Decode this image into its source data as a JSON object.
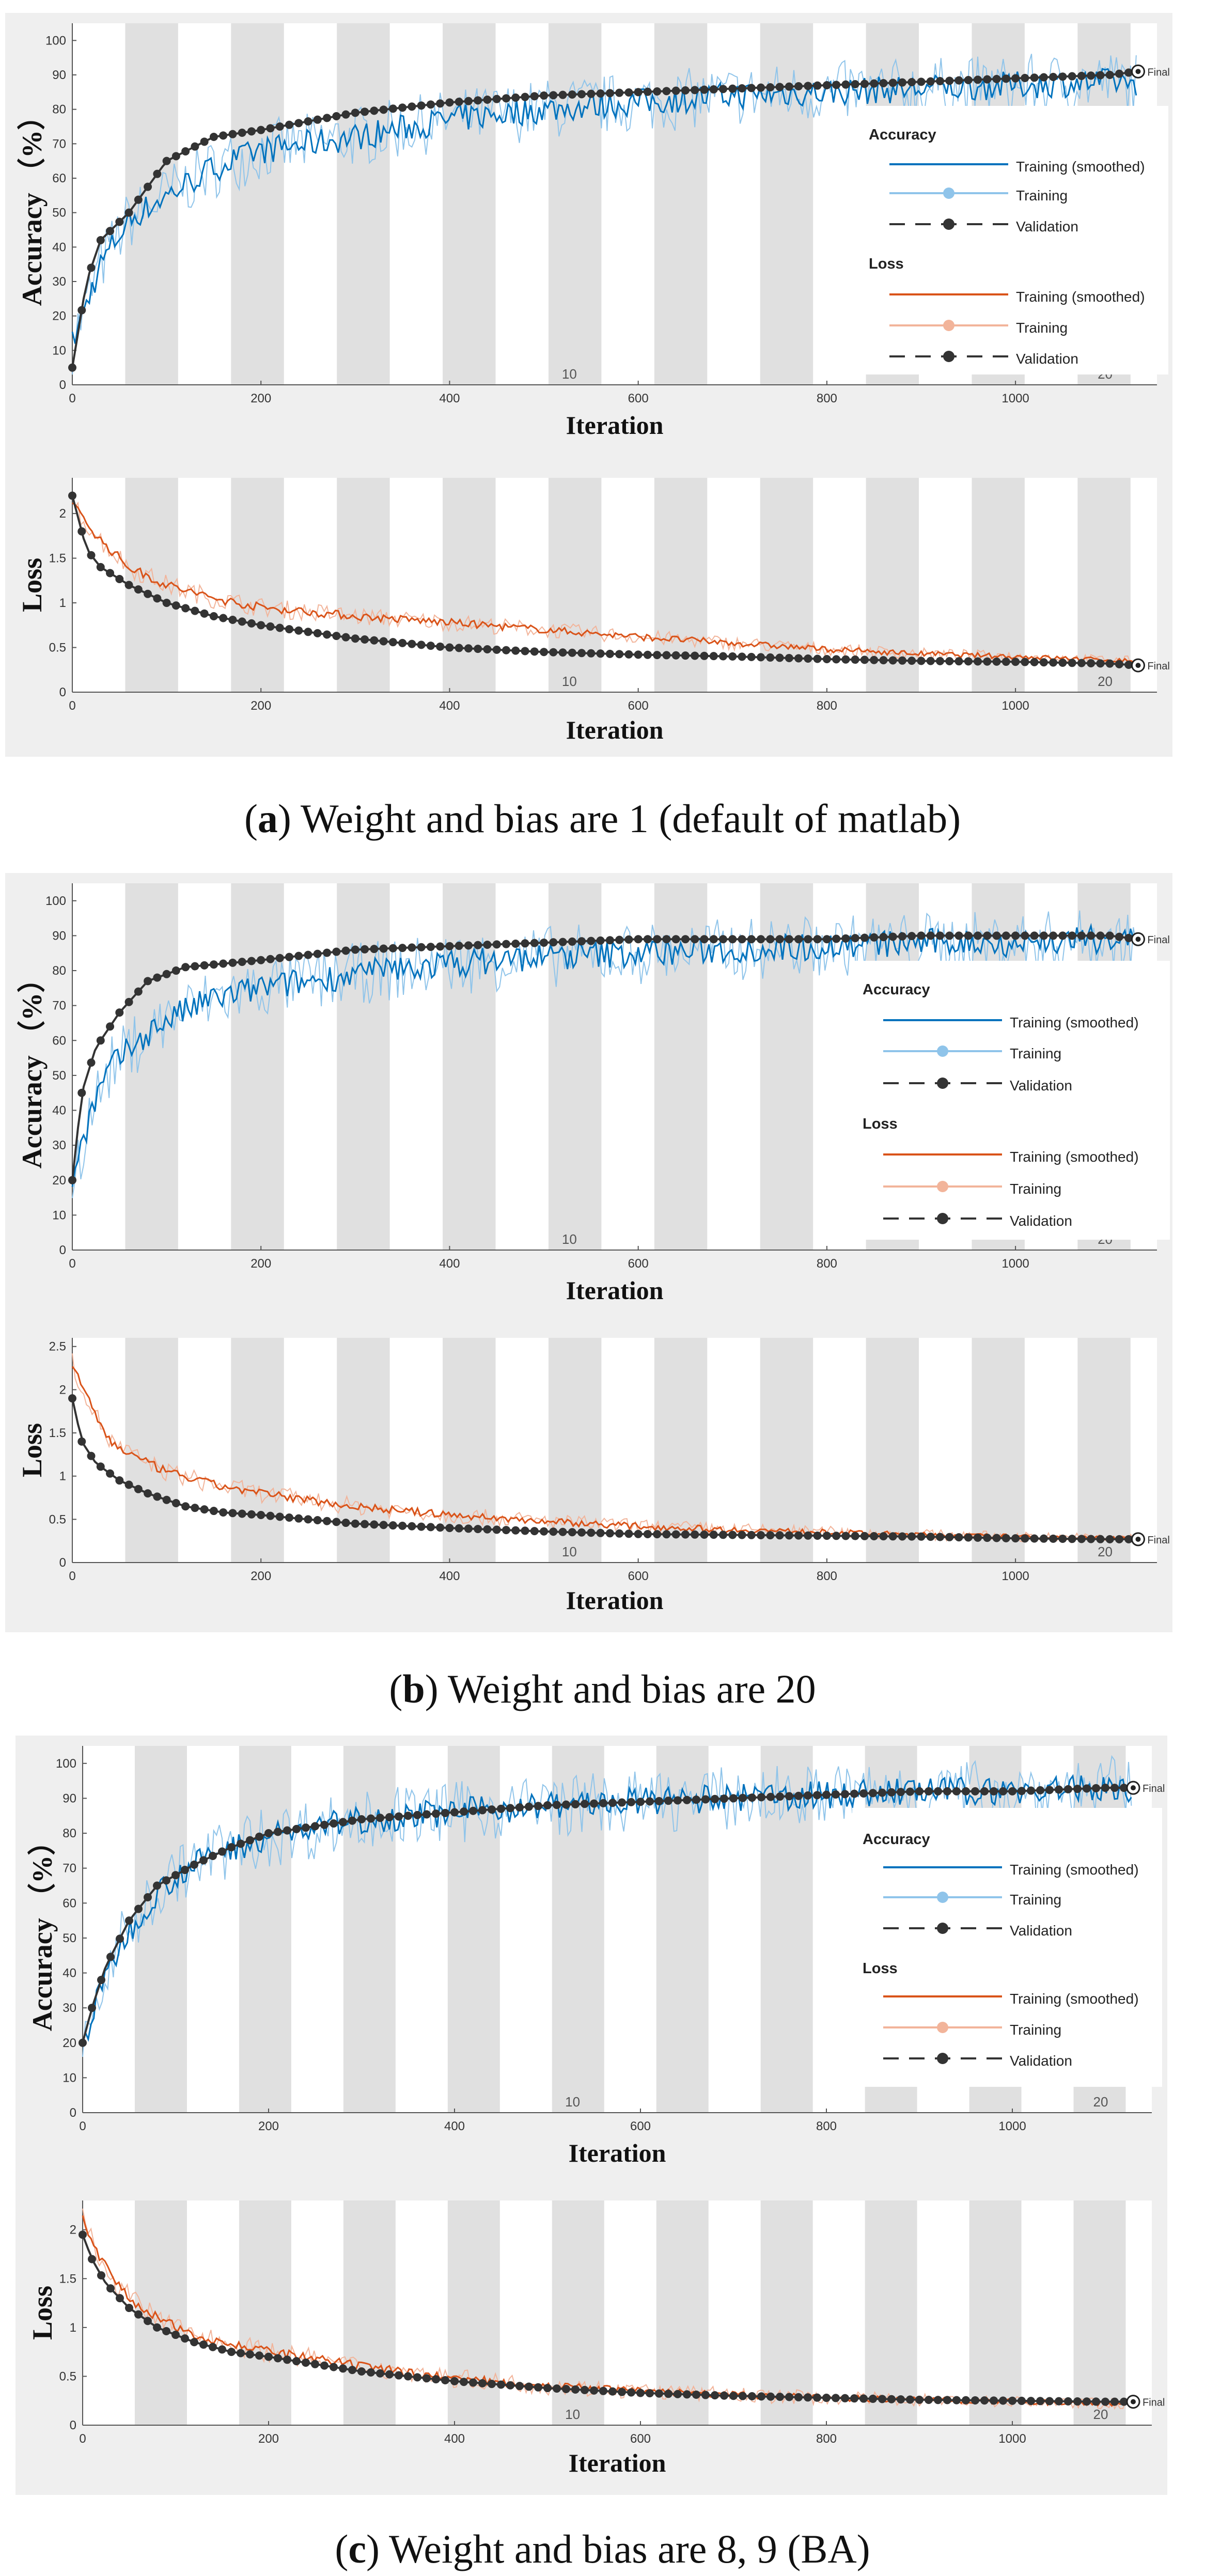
{
  "panels": [
    {
      "id": "a",
      "caption_letter": "a",
      "caption_text": "Weight and bias are 1 (default of matlab)",
      "legend": {
        "accuracy_header": "Accuracy",
        "loss_header": "Loss",
        "items": [
          "Training (smoothed)",
          "Training",
          "Validation"
        ]
      }
    },
    {
      "id": "b",
      "caption_letter": "b",
      "caption_text": "Weight and bias are 20",
      "legend": {
        "accuracy_header": "Accuracy",
        "loss_header": "Loss",
        "items": [
          "Training (smoothed)",
          "Training",
          "Validation"
        ]
      }
    },
    {
      "id": "c",
      "caption_letter": "c",
      "caption_text": "Weight and bias are 8, 9 (BA)",
      "legend": {
        "accuracy_header": "Accuracy",
        "loss_header": "Loss",
        "items": [
          "Training (smoothed)",
          "Training",
          "Validation"
        ]
      }
    }
  ],
  "colors": {
    "training_smoothed_acc": "#0072bd",
    "training_raw_acc": "#8fc4ea",
    "training_smoothed_loss": "#d95319",
    "training_raw_loss": "#f2b49a",
    "validation": "#333333",
    "epoch_band": "#e0e0e0"
  },
  "chart_data": [
    {
      "panel": "a",
      "type": "line",
      "metric": "accuracy",
      "ylabel": "Accuracy （%）",
      "xlabel": "Iteration",
      "xlim": [
        0,
        1150
      ],
      "ylim": [
        0,
        105
      ],
      "xticks": [
        0,
        200,
        400,
        600,
        800,
        1000
      ],
      "yticks": [
        0,
        10,
        20,
        30,
        40,
        50,
        60,
        70,
        80,
        90,
        100
      ],
      "epoch_labels": [
        {
          "text": "10",
          "x": 527
        },
        {
          "text": "20",
          "x": 1095
        }
      ],
      "final_label": "Final",
      "smoothed": {
        "x": [
          0,
          30,
          60,
          100,
          150,
          200,
          300,
          400,
          500,
          600,
          700,
          800,
          900,
          1000,
          1100,
          1130
        ],
        "y": [
          12,
          35,
          48,
          55,
          63,
          68,
          72,
          77,
          80,
          82,
          84,
          85,
          86,
          87,
          88,
          88
        ]
      },
      "validation": {
        "x": [
          0,
          15,
          30,
          60,
          100,
          150,
          200,
          300,
          400,
          500,
          600,
          700,
          800,
          900,
          1000,
          1100,
          1130
        ],
        "y": [
          5,
          30,
          42,
          50,
          65,
          72,
          74,
          79,
          82,
          84,
          85,
          86,
          87,
          88,
          89,
          90,
          91
        ]
      }
    },
    {
      "panel": "a",
      "type": "line",
      "metric": "loss",
      "ylabel": "Loss",
      "xlabel": "Iteration",
      "xlim": [
        0,
        1150
      ],
      "ylim": [
        0,
        2.4
      ],
      "xticks": [
        0,
        200,
        400,
        600,
        800,
        1000
      ],
      "yticks": [
        0,
        0.5,
        1,
        1.5,
        2
      ],
      "yticklabels": [
        "0",
        "0.5",
        "1",
        "1.5",
        "2"
      ],
      "epoch_labels": [
        {
          "text": "10",
          "x": 527
        },
        {
          "text": "20",
          "x": 1095
        }
      ],
      "final_label": "Final",
      "smoothed": {
        "x": [
          0,
          30,
          60,
          100,
          150,
          200,
          300,
          400,
          500,
          600,
          700,
          800,
          900,
          1000,
          1100,
          1130
        ],
        "y": [
          2.1,
          1.7,
          1.4,
          1.2,
          1.05,
          0.95,
          0.85,
          0.78,
          0.7,
          0.62,
          0.55,
          0.48,
          0.43,
          0.4,
          0.36,
          0.35
        ]
      },
      "validation": {
        "x": [
          0,
          15,
          30,
          60,
          100,
          150,
          200,
          300,
          400,
          500,
          600,
          700,
          800,
          900,
          1000,
          1100,
          1130
        ],
        "y": [
          2.2,
          1.6,
          1.4,
          1.2,
          1.0,
          0.85,
          0.75,
          0.6,
          0.5,
          0.45,
          0.42,
          0.4,
          0.37,
          0.35,
          0.34,
          0.32,
          0.3
        ]
      }
    },
    {
      "panel": "b",
      "type": "line",
      "metric": "accuracy",
      "ylabel": "Accuracy （%）",
      "xlabel": "Iteration",
      "xlim": [
        0,
        1150
      ],
      "ylim": [
        0,
        105
      ],
      "xticks": [
        0,
        200,
        400,
        600,
        800,
        1000
      ],
      "yticks": [
        0,
        10,
        20,
        30,
        40,
        50,
        60,
        70,
        80,
        90,
        100
      ],
      "epoch_labels": [
        {
          "text": "10",
          "x": 527
        },
        {
          "text": "20",
          "x": 1095
        }
      ],
      "final_label": "Final",
      "smoothed": {
        "x": [
          0,
          20,
          40,
          70,
          100,
          150,
          200,
          300,
          400,
          500,
          600,
          700,
          800,
          900,
          1000,
          1100,
          1130
        ],
        "y": [
          20,
          40,
          52,
          60,
          66,
          72,
          75,
          79,
          82,
          84,
          85,
          86,
          87,
          88,
          88,
          89,
          89
        ]
      },
      "validation": {
        "x": [
          0,
          10,
          25,
          50,
          80,
          120,
          160,
          200,
          300,
          400,
          500,
          600,
          700,
          800,
          900,
          1000,
          1100,
          1130
        ],
        "y": [
          20,
          45,
          58,
          68,
          77,
          81,
          82,
          83,
          86,
          87,
          88,
          89,
          89,
          89,
          90,
          90,
          90,
          89
        ]
      }
    },
    {
      "panel": "b",
      "type": "line",
      "metric": "loss",
      "ylabel": "Loss",
      "xlabel": "Iteration",
      "xlim": [
        0,
        1150
      ],
      "ylim": [
        0,
        2.6
      ],
      "xticks": [
        0,
        200,
        400,
        600,
        800,
        1000
      ],
      "yticks": [
        0,
        0.5,
        1,
        1.5,
        2,
        2.5
      ],
      "yticklabels": [
        "0",
        "0.5",
        "1",
        "1.5",
        "2",
        "2.5"
      ],
      "epoch_labels": [
        {
          "text": "10",
          "x": 527
        },
        {
          "text": "20",
          "x": 1095
        }
      ],
      "final_label": "Final",
      "smoothed": {
        "x": [
          0,
          20,
          40,
          70,
          100,
          150,
          200,
          300,
          400,
          500,
          600,
          700,
          800,
          900,
          1000,
          1100,
          1130
        ],
        "y": [
          2.3,
          1.8,
          1.4,
          1.2,
          1.05,
          0.9,
          0.8,
          0.65,
          0.55,
          0.48,
          0.42,
          0.38,
          0.35,
          0.32,
          0.3,
          0.28,
          0.28
        ]
      },
      "validation": {
        "x": [
          0,
          10,
          25,
          50,
          80,
          120,
          160,
          200,
          300,
          400,
          500,
          600,
          700,
          800,
          900,
          1000,
          1100,
          1130
        ],
        "y": [
          1.9,
          1.4,
          1.15,
          0.95,
          0.8,
          0.65,
          0.58,
          0.55,
          0.45,
          0.4,
          0.36,
          0.33,
          0.32,
          0.31,
          0.3,
          0.28,
          0.27,
          0.27
        ]
      }
    },
    {
      "panel": "c",
      "type": "line",
      "metric": "accuracy",
      "ylabel": "Accuracy （%）",
      "xlabel": "Iteration",
      "xlim": [
        0,
        1150
      ],
      "ylim": [
        0,
        105
      ],
      "xticks": [
        0,
        200,
        400,
        600,
        800,
        1000
      ],
      "yticks": [
        0,
        10,
        20,
        30,
        40,
        50,
        60,
        70,
        80,
        90,
        100
      ],
      "epoch_labels": [
        {
          "text": "10",
          "x": 527
        },
        {
          "text": "20",
          "x": 1095
        }
      ],
      "final_label": "Final",
      "smoothed": {
        "x": [
          0,
          20,
          40,
          70,
          100,
          150,
          200,
          300,
          400,
          500,
          600,
          700,
          800,
          900,
          1000,
          1100,
          1130
        ],
        "y": [
          20,
          35,
          48,
          60,
          68,
          75,
          79,
          84,
          86,
          88,
          89,
          90,
          91,
          92,
          92,
          93,
          93
        ]
      },
      "validation": {
        "x": [
          0,
          10,
          25,
          50,
          80,
          120,
          160,
          200,
          300,
          400,
          500,
          600,
          700,
          800,
          900,
          1000,
          1100,
          1130
        ],
        "y": [
          20,
          30,
          42,
          55,
          65,
          71,
          76,
          80,
          84,
          86,
          88,
          89,
          90,
          91,
          92,
          92,
          93,
          93
        ]
      }
    },
    {
      "panel": "c",
      "type": "line",
      "metric": "loss",
      "ylabel": "Loss",
      "xlabel": "Iteration",
      "xlim": [
        0,
        1150
      ],
      "ylim": [
        0,
        2.3
      ],
      "xticks": [
        0,
        200,
        400,
        600,
        800,
        1000
      ],
      "yticks": [
        0,
        0.5,
        1,
        1.5,
        2
      ],
      "yticklabels": [
        "0",
        "0.5",
        "1",
        "1.5",
        "2"
      ],
      "epoch_labels": [
        {
          "text": "10",
          "x": 527
        },
        {
          "text": "20",
          "x": 1095
        }
      ],
      "final_label": "Final",
      "smoothed": {
        "x": [
          0,
          20,
          40,
          70,
          100,
          150,
          200,
          300,
          400,
          500,
          600,
          700,
          800,
          900,
          1000,
          1100,
          1130
        ],
        "y": [
          2.1,
          1.7,
          1.4,
          1.15,
          1.0,
          0.85,
          0.75,
          0.6,
          0.48,
          0.4,
          0.35,
          0.31,
          0.28,
          0.26,
          0.24,
          0.22,
          0.22
        ]
      },
      "validation": {
        "x": [
          0,
          10,
          25,
          50,
          80,
          120,
          160,
          200,
          300,
          400,
          500,
          600,
          700,
          800,
          900,
          1000,
          1100,
          1130
        ],
        "y": [
          1.95,
          1.7,
          1.45,
          1.2,
          1.0,
          0.85,
          0.75,
          0.7,
          0.55,
          0.45,
          0.38,
          0.33,
          0.3,
          0.28,
          0.26,
          0.25,
          0.24,
          0.24
        ]
      }
    }
  ]
}
